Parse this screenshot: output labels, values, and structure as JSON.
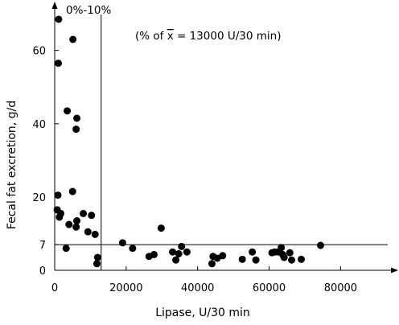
{
  "chart_data": {
    "type": "scatter",
    "title": "",
    "xlabel": "Lipase, U/30 min",
    "ylabel": "Fecal fat excretion, g/d",
    "xlim": [
      0,
      95000
    ],
    "ylim": [
      0,
      72
    ],
    "x_ticks": [
      0,
      20000,
      40000,
      60000,
      80000
    ],
    "x_tick_labels": [
      "0",
      "20000",
      "40000",
      "60000",
      "80000"
    ],
    "y_ticks": [
      0,
      7,
      20,
      40,
      60
    ],
    "y_tick_labels": [
      "0",
      "7",
      "20",
      "40",
      "60"
    ],
    "grid": false,
    "reference_lines": {
      "horizontal_y": 7,
      "vertical_x": 13000
    },
    "annotations": {
      "vertical_line_label": "0%-10%",
      "note_prefix": "(% of ",
      "note_xbar": "x",
      "note_suffix": " = 13000 U/30 min)"
    },
    "series": [
      {
        "points": [
          [
            1100,
            68.5
          ],
          [
            1000,
            56.5
          ],
          [
            5100,
            63
          ],
          [
            3500,
            43.5
          ],
          [
            6200,
            41.5
          ],
          [
            6000,
            38.5
          ],
          [
            900,
            20.5
          ],
          [
            5000,
            21.5
          ],
          [
            700,
            16.5
          ],
          [
            1700,
            15.5
          ],
          [
            1300,
            14.5
          ],
          [
            4000,
            12.5
          ],
          [
            6200,
            13.5
          ],
          [
            6000,
            11.8
          ],
          [
            8000,
            15.5
          ],
          [
            10300,
            15
          ],
          [
            9300,
            10.5
          ],
          [
            11300,
            9.8
          ],
          [
            3200,
            6
          ],
          [
            12000,
            3.5
          ],
          [
            11800,
            1.8
          ],
          [
            19000,
            7.5
          ],
          [
            21800,
            6
          ],
          [
            27800,
            4.3
          ],
          [
            26400,
            3.8
          ],
          [
            29800,
            11.5
          ],
          [
            33000,
            5
          ],
          [
            34700,
            4.5
          ],
          [
            35500,
            6.5
          ],
          [
            37000,
            5
          ],
          [
            33900,
            2.8
          ],
          [
            44300,
            3.8
          ],
          [
            44000,
            1.8
          ],
          [
            45500,
            3.3
          ],
          [
            47000,
            4
          ],
          [
            52500,
            3
          ],
          [
            55300,
            5
          ],
          [
            56300,
            2.8
          ],
          [
            60800,
            4.8
          ],
          [
            61600,
            5
          ],
          [
            62600,
            5
          ],
          [
            63400,
            6.2
          ],
          [
            63800,
            4.3
          ],
          [
            64200,
            3.5
          ],
          [
            65800,
            4.8
          ],
          [
            66300,
            2.8
          ],
          [
            69000,
            3
          ],
          [
            74400,
            6.8
          ]
        ]
      }
    ]
  }
}
